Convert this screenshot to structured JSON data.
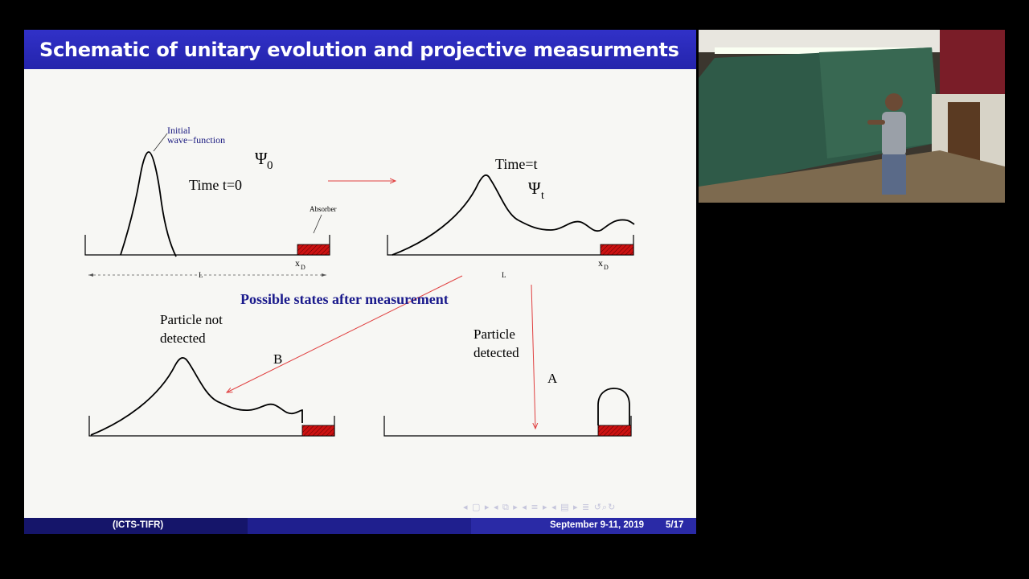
{
  "slide": {
    "title": "Schematic of unitary evolution and projective measurments",
    "footer_institute": "(ICTS-TIFR)",
    "footer_date": "September 9-11, 2019",
    "footer_page": "5/17"
  },
  "diagram": {
    "initial_wavefunction_label_line1": "Initial",
    "initial_wavefunction_label_line2": "wave−function",
    "psi0_symbol": "Ψ",
    "psi0_subscript": "0",
    "time_zero_label": "Time t=0",
    "absorber_label": "Absorber",
    "xd_left_main": "x",
    "xd_left_sub": "D",
    "length_left_label": "L",
    "time_t_label": "Time=t",
    "psit_symbol": "Ψ",
    "psit_subscript": "t",
    "xd_right_main": "x",
    "xd_right_sub": "D",
    "length_right_label": "L",
    "possible_states_heading": "Possible states after measurement",
    "not_detected_line1": "Particle not",
    "not_detected_line2": "detected",
    "label_b": "B",
    "detected_line1": "Particle",
    "detected_line2": "detected",
    "label_a": "A"
  },
  "colors": {
    "title_bar": "#2828b4",
    "absorber_fill": "#cc1111",
    "arrow_red": "#e04040",
    "heading_blue": "#1a1a8c",
    "annotation_blue": "#1a1a80"
  },
  "navigation_icons": [
    "nav-left-icon",
    "frame-icon",
    "section-icon",
    "subsection-icon",
    "toc-icon",
    "search-icon",
    "undo-icon"
  ],
  "camera_feed": {
    "description_icon": "presenter-video-icon"
  }
}
